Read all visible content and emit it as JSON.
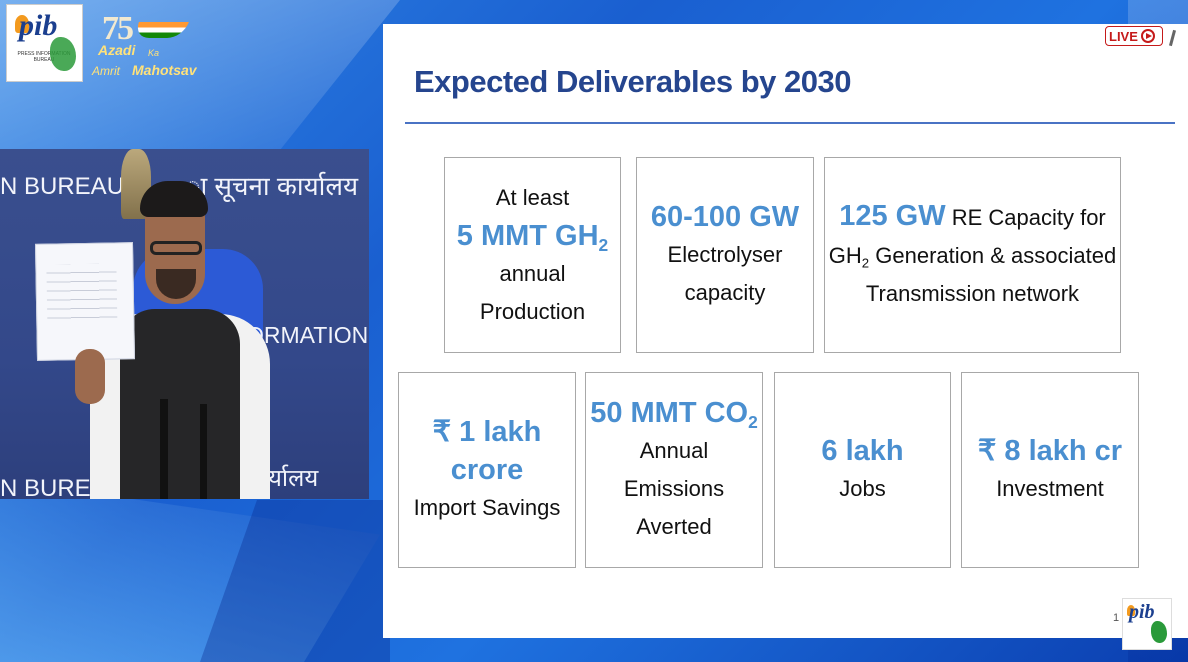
{
  "branding": {
    "pib_logo_text": "pib",
    "pib_logo_caption": "PRESS INFORMATION BUREAU",
    "aka_75": "75",
    "aka_azadi": "Azadi",
    "aka_ka": "Ka",
    "aka_amrit": "Amrit",
    "aka_mahotsav": "Mahotsav"
  },
  "video": {
    "backdrop_text_1": "N BUREAU",
    "backdrop_hindi_1": "ा सूचना कार्यालय",
    "backdrop_text_2": "ORMATION BUR",
    "backdrop_hindi_2": "र्यालय",
    "backdrop_text_3": "N BUREAU"
  },
  "live_badge": {
    "label": "LIVE"
  },
  "slide": {
    "title": "Expected Deliverables by 2030",
    "page_number": "1",
    "boxes": {
      "gh2": {
        "line1": "At least",
        "value": "5 MMT GH",
        "value_sub": "2",
        "line3": "annual",
        "line4": "Production"
      },
      "electrolyser": {
        "value": "60-100 GW",
        "line2": "Electrolyser",
        "line3": "capacity"
      },
      "re_capacity": {
        "value": "125 GW",
        "value_suffix": " RE Capacity for",
        "line2_pre": "GH",
        "line2_sub": "2",
        "line2_post": " Generation & associated",
        "line3": "Transmission network"
      },
      "import_savings": {
        "value1": "₹ 1 lakh",
        "value2": "crore",
        "line3": "Import Savings"
      },
      "emissions": {
        "value": "50 MMT CO",
        "value_sub": "2",
        "line2": "Annual",
        "line3": "Emissions",
        "line4": "Averted"
      },
      "jobs": {
        "value": "6 lakh",
        "line2": "Jobs"
      },
      "investment": {
        "value": "₹ 8 lakh cr",
        "line2": "Investment"
      }
    }
  },
  "colors": {
    "title": "#25458e",
    "highlight": "#4a8fd0",
    "live": "#c51a1a",
    "background": "#1a5fd0"
  }
}
